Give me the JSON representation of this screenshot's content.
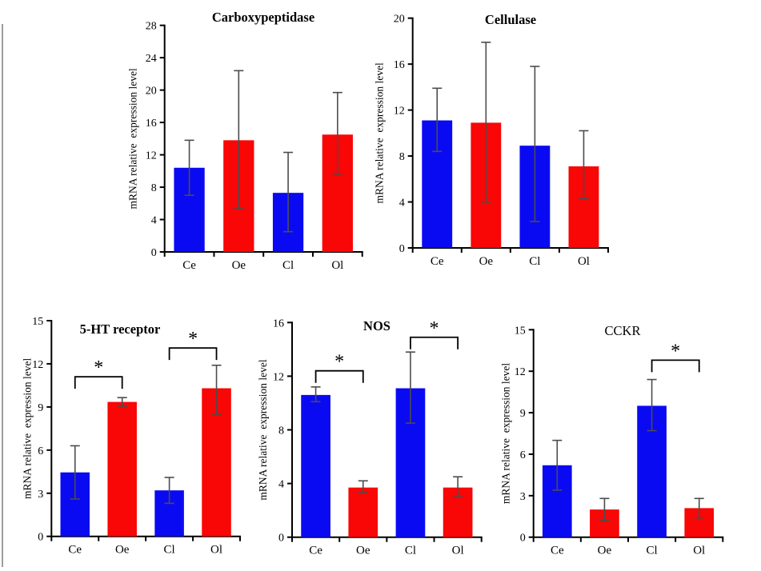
{
  "window": {
    "background": "#ffffff",
    "left_edge_color": "#9c9c9c"
  },
  "chart_data": [
    {
      "id": "carboxypeptidase",
      "type": "bar",
      "title": "Carboxypeptidase",
      "title_bold": true,
      "xlabel": "",
      "ylabel": "mRNA relative  expression level",
      "categories": [
        "Ce",
        "Oe",
        "Cl",
        "Ol"
      ],
      "values": [
        10.4,
        13.8,
        7.3,
        14.5
      ],
      "error_low": [
        7.0,
        5.4,
        2.5,
        9.5
      ],
      "error_high": [
        13.8,
        22.4,
        12.3,
        19.7
      ],
      "bar_colors": [
        "#0a0af2",
        "#f90606",
        "#0a0af2",
        "#f90606"
      ],
      "errorbar_color": "#4c4c4c",
      "ylim": [
        0,
        28
      ],
      "ytick_step": 4,
      "grid": false,
      "legend": null,
      "brackets": []
    },
    {
      "id": "cellulase",
      "type": "bar",
      "title": "Cellulase",
      "title_bold": true,
      "xlabel": "",
      "ylabel": "mRNA relative  expression level",
      "categories": [
        "Ce",
        "Oe",
        "Cl",
        "Ol"
      ],
      "values": [
        11.1,
        10.9,
        8.9,
        7.1
      ],
      "error_low": [
        8.4,
        4.0,
        2.3,
        4.3
      ],
      "error_high": [
        13.9,
        17.9,
        15.8,
        10.2
      ],
      "bar_colors": [
        "#0a0af2",
        "#f90606",
        "#0a0af2",
        "#f90606"
      ],
      "errorbar_color": "#4c4c4c",
      "ylim": [
        0,
        20
      ],
      "ytick_step": 4,
      "grid": false,
      "legend": null,
      "brackets": []
    },
    {
      "id": "5-ht-receptor",
      "type": "bar",
      "title": "5-HT receptor",
      "title_bold": true,
      "xlabel": "",
      "ylabel": "mRNA relative  expression level",
      "categories": [
        "Ce",
        "Oe",
        "Cl",
        "Ol"
      ],
      "values": [
        4.45,
        9.35,
        3.2,
        10.3
      ],
      "error_low": [
        2.6,
        9.0,
        2.3,
        8.5
      ],
      "error_high": [
        6.3,
        9.65,
        4.1,
        11.9
      ],
      "bar_colors": [
        "#0a0af2",
        "#f90606",
        "#0a0af2",
        "#f90606"
      ],
      "errorbar_color": "#4c4c4c",
      "ylim": [
        0,
        15
      ],
      "ytick_step": 3,
      "grid": false,
      "legend": null,
      "brackets": [
        {
          "from": 0,
          "to": 1,
          "y": 11.1,
          "label": "*"
        },
        {
          "from": 2,
          "to": 3,
          "y": 13.1,
          "label": "*"
        }
      ]
    },
    {
      "id": "nos",
      "type": "bar",
      "title": "NOS",
      "title_bold": true,
      "xlabel": "",
      "ylabel": "mRNA relative  expression level",
      "categories": [
        "Ce",
        "Oe",
        "Cl",
        "Ol"
      ],
      "values": [
        10.6,
        3.7,
        11.1,
        3.7
      ],
      "error_low": [
        10.1,
        3.3,
        8.5,
        3.0
      ],
      "error_high": [
        11.2,
        4.2,
        13.8,
        4.5
      ],
      "bar_colors": [
        "#0a0af2",
        "#f90606",
        "#0a0af2",
        "#f90606"
      ],
      "errorbar_color": "#4c4c4c",
      "ylim": [
        0,
        16
      ],
      "ytick_step": 4,
      "grid": false,
      "legend": null,
      "brackets": [
        {
          "from": 0,
          "to": 1,
          "y": 12.4,
          "label": "*"
        },
        {
          "from": 2,
          "to": 3,
          "y": 14.9,
          "label": "*"
        }
      ]
    },
    {
      "id": "cckr",
      "type": "bar",
      "title": "CCKR",
      "title_bold": false,
      "xlabel": "",
      "ylabel": "mRNA relative  expression level",
      "categories": [
        "Ce",
        "Oe",
        "Cl",
        "Ol"
      ],
      "values": [
        5.2,
        2.0,
        9.5,
        2.1
      ],
      "error_low": [
        3.4,
        1.2,
        7.7,
        1.4
      ],
      "error_high": [
        7.0,
        2.8,
        11.4,
        2.8
      ],
      "bar_colors": [
        "#0a0af2",
        "#f90606",
        "#0a0af2",
        "#f90606"
      ],
      "errorbar_color": "#4c4c4c",
      "ylim": [
        0,
        15
      ],
      "ytick_step": 3,
      "grid": false,
      "legend": null,
      "brackets": [
        {
          "from": 2,
          "to": 3,
          "y": 12.8,
          "label": "*"
        }
      ]
    }
  ]
}
